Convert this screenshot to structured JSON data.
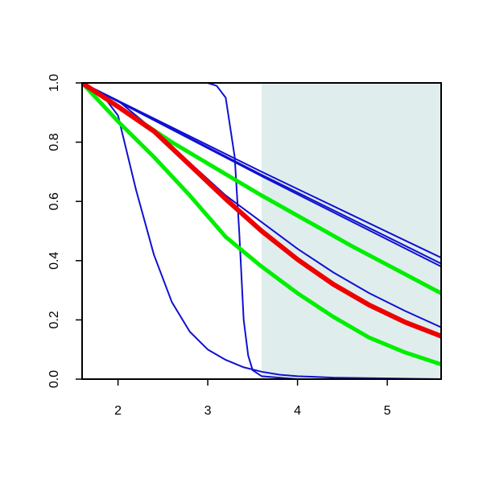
{
  "chart_data": {
    "type": "line",
    "xlim": [
      1.6,
      5.6
    ],
    "ylim": [
      0,
      1
    ],
    "xticks": [
      2,
      3,
      4,
      5
    ],
    "yticks": [
      {
        "value": 0,
        "label": "0.0"
      },
      0.2,
      0.4,
      0.6,
      0.8,
      {
        "value": 1,
        "label": "1.0"
      }
    ],
    "shade": {
      "range": [
        3.6,
        5.6
      ],
      "color": "#e0eded"
    },
    "series": [
      {
        "color": "#1010d0",
        "width": 2,
        "x": [
          1.6,
          3.6,
          5.6
        ],
        "values": [
          1,
          0.7,
          0.41
        ]
      },
      {
        "color": "#1010d0",
        "width": 2,
        "x": [
          1.6,
          3.6,
          5.6
        ],
        "values": [
          1,
          0.69,
          0.39
        ]
      },
      {
        "color": "#1010d0",
        "width": 2,
        "x": [
          1.6,
          3.6,
          5.6
        ],
        "values": [
          1,
          0.685,
          0.38
        ]
      },
      {
        "color": "#1010d0",
        "width": 2,
        "x": [
          1.6,
          2.0,
          2.4,
          2.8,
          3.2,
          3.6,
          4.0,
          4.4,
          4.8,
          5.2,
          5.6
        ],
        "values": [
          1,
          0.94,
          0.84,
          0.73,
          0.62,
          0.53,
          0.44,
          0.36,
          0.29,
          0.23,
          0.175
        ]
      },
      {
        "color": "#1010d0",
        "width": 2,
        "x": [
          1.6,
          1.8,
          2.0,
          2.2,
          2.4,
          2.6,
          2.8,
          3.0,
          3.2,
          3.4,
          3.6,
          3.8,
          4.0,
          4.4,
          5.6
        ],
        "values": [
          1,
          0.97,
          0.89,
          0.64,
          0.42,
          0.26,
          0.16,
          0.1,
          0.065,
          0.04,
          0.025,
          0.015,
          0.01,
          0.005,
          0
        ]
      },
      {
        "color": "#1010d0",
        "width": 2,
        "x": [
          1.6,
          3.0,
          3.1,
          3.2,
          3.3,
          3.35,
          3.4,
          3.45,
          3.5,
          3.6,
          4.0,
          5.6
        ],
        "values": [
          1,
          1,
          0.99,
          0.95,
          0.75,
          0.5,
          0.2,
          0.08,
          0.03,
          0.01,
          0,
          0
        ]
      },
      {
        "color": "#00ee00",
        "width": 5,
        "x": [
          1.6,
          2.6,
          3.6,
          4.6,
          5.6
        ],
        "values": [
          1,
          0.8,
          0.62,
          0.45,
          0.29
        ]
      },
      {
        "color": "#00ee00",
        "width": 5,
        "x": [
          1.6,
          2.0,
          2.4,
          2.8,
          3.2,
          3.6,
          4.0,
          4.4,
          4.8,
          5.2,
          5.6
        ],
        "values": [
          1,
          0.87,
          0.75,
          0.62,
          0.48,
          0.38,
          0.29,
          0.21,
          0.14,
          0.09,
          0.05
        ]
      },
      {
        "color": "#ee0000",
        "width": 6,
        "x": [
          1.6,
          2.0,
          2.4,
          2.8,
          3.2,
          3.6,
          4.0,
          4.4,
          4.8,
          5.2,
          5.6
        ],
        "values": [
          1,
          0.92,
          0.837,
          0.723,
          0.608,
          0.5,
          0.404,
          0.32,
          0.25,
          0.192,
          0.145
        ]
      }
    ]
  }
}
